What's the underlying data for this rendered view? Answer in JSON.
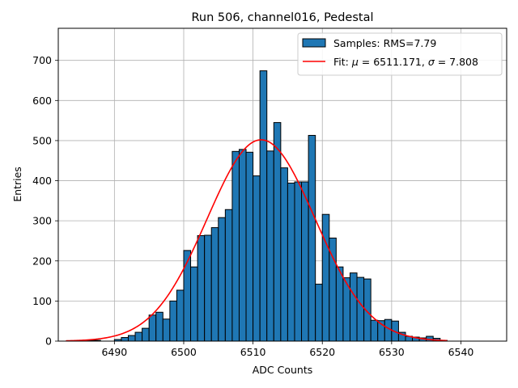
{
  "chart_data": {
    "type": "bar",
    "title": "Run 506, channel016, Pedestal",
    "xlabel": "ADC Counts",
    "ylabel": "Entries",
    "xlim": [
      6481.9,
      6546.6
    ],
    "ylim": [
      0,
      780
    ],
    "xticks": [
      6490,
      6500,
      6510,
      6520,
      6530,
      6540
    ],
    "yticks": [
      0,
      100,
      200,
      300,
      400,
      500,
      600,
      700
    ],
    "grid": true,
    "legend_position": "top-right",
    "bin_start": 6483,
    "bin_width": 1,
    "histogram": {
      "name": "Samples: RMS=7.79",
      "color": "#1f77b4",
      "edge_color": "#000000",
      "counts": [
        0,
        0,
        0,
        2,
        2,
        0,
        0,
        4,
        9,
        14,
        22,
        32,
        65,
        72,
        55,
        100,
        127,
        226,
        185,
        263,
        264,
        283,
        308,
        328,
        473,
        478,
        471,
        412,
        674,
        474,
        545,
        432,
        394,
        397,
        397,
        513,
        142,
        316,
        257,
        185,
        158,
        170,
        159,
        155,
        52,
        51,
        54,
        50,
        22,
        12,
        10,
        8,
        12,
        7,
        2
      ]
    },
    "fit": {
      "name_prefix": "Fit: ",
      "mu_symbol": "μ",
      "mu_text": " = 6511.171, ",
      "sigma_symbol": "σ",
      "sigma_text": " = 7.808",
      "mu": 6511.171,
      "sigma": 7.808,
      "amplitude": 502,
      "x_range": [
        6483,
        6538
      ],
      "color": "#ff0000"
    }
  }
}
